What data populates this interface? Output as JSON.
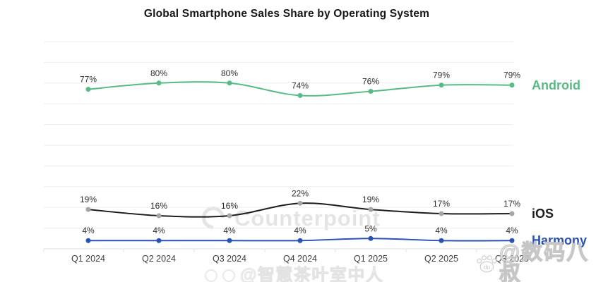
{
  "title": "Global Smartphone Sales Share by Operating System",
  "chart_data": {
    "type": "line",
    "title": "Global Smartphone Sales Share by Operating System",
    "categories": [
      "Q1 2024",
      "Q2 2024",
      "Q3 2024",
      "Q4 2024",
      "Q1 2025",
      "Q2 2025",
      "Q3 2025"
    ],
    "series": [
      {
        "name": "Android",
        "values": [
          77,
          80,
          80,
          74,
          76,
          79,
          79
        ],
        "color": "#57bb85",
        "marker_color": "#57bb85"
      },
      {
        "name": "iOS",
        "values": [
          19,
          16,
          16,
          22,
          19,
          17,
          17
        ],
        "color": "#1c1c1c",
        "marker_color": "#a6a6a6"
      },
      {
        "name": "Harmony",
        "values": [
          4,
          4,
          4,
          4,
          5,
          4,
          4
        ],
        "color": "#2a52b5",
        "marker_color": "#2a52b5"
      }
    ],
    "data_labels": true,
    "data_label_format": "{v}%",
    "ylim": [
      0,
      100
    ],
    "grid": true,
    "grid_step": 10,
    "legend_position": "right-of-line-end",
    "xlabel": "",
    "ylabel": ""
  },
  "watermarks": {
    "center": "Counterpoint",
    "bottom_right": "@数码八叔",
    "bottom_right_badge": "du",
    "bottom_center": "@智慧茶叶室中人"
  },
  "colors": {
    "background": "#ffffff",
    "grid": "#ededed",
    "axis": "#e2e2e2",
    "data_label": "#2e2e2e",
    "x_tick_label": "#3d3d3d",
    "title": "#161616",
    "watermark_center": "#e4e4e4"
  }
}
